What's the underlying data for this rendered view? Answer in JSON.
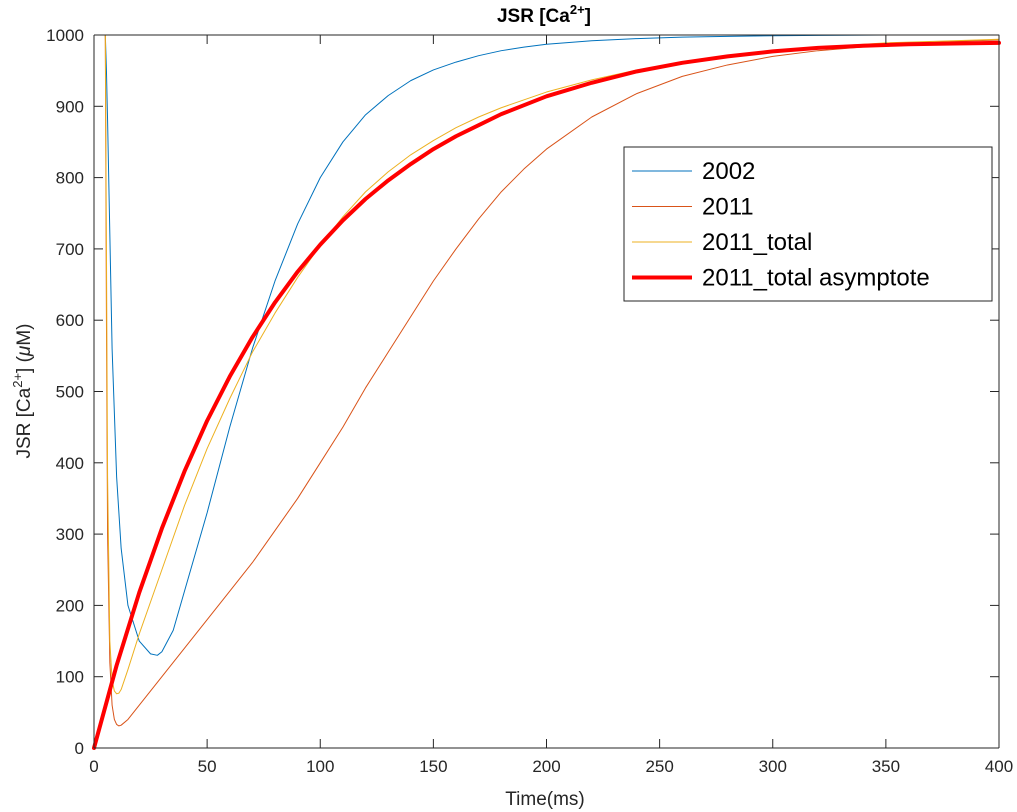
{
  "chart_data": {
    "type": "line",
    "title": "JSR [Ca",
    "title_superscript": "2+",
    "title_suffix": "]",
    "xlabel": "Time(ms)",
    "ylabel_prefix": "JSR [Ca",
    "ylabel_superscript": "2+",
    "ylabel_suffix": "] (",
    "ylabel_mu": "μ",
    "ylabel_unit": "M)",
    "xlim": [
      0,
      400
    ],
    "ylim": [
      0,
      1000
    ],
    "xticks": [
      0,
      50,
      100,
      150,
      200,
      250,
      300,
      350,
      400
    ],
    "yticks": [
      0,
      100,
      200,
      300,
      400,
      500,
      600,
      700,
      800,
      900,
      1000
    ],
    "grid": false,
    "legend_position": "upper-right",
    "series": [
      {
        "name": "2002",
        "color": "#0072BD",
        "line_width": 1,
        "x": [
          5,
          5.5,
          6,
          7,
          8,
          10,
          12,
          15,
          20,
          25,
          28,
          30,
          35,
          40,
          50,
          60,
          70,
          80,
          90,
          100,
          110,
          120,
          130,
          140,
          150,
          160,
          170,
          180,
          190,
          200,
          220,
          240,
          260,
          280,
          300,
          320,
          350,
          380,
          400
        ],
        "y": [
          1000,
          950,
          880,
          720,
          560,
          380,
          280,
          200,
          150,
          132,
          130,
          135,
          165,
          220,
          330,
          450,
          560,
          655,
          735,
          800,
          850,
          888,
          915,
          936,
          951,
          962,
          971,
          978,
          983,
          987,
          992,
          995,
          997,
          998,
          999,
          999.5,
          1000,
          1000,
          1000
        ]
      },
      {
        "name": "2011",
        "color": "#D95319",
        "line_width": 1,
        "x": [
          5,
          5.5,
          6,
          7,
          8,
          9,
          10,
          11,
          12,
          15,
          20,
          30,
          40,
          50,
          60,
          70,
          80,
          90,
          100,
          110,
          120,
          130,
          140,
          150,
          160,
          170,
          180,
          190,
          200,
          220,
          240,
          260,
          280,
          300,
          320,
          350,
          380,
          400
        ],
        "y": [
          1000,
          600,
          300,
          120,
          60,
          40,
          33,
          31,
          32,
          40,
          60,
          100,
          140,
          180,
          220,
          260,
          305,
          350,
          400,
          450,
          505,
          555,
          605,
          655,
          700,
          742,
          780,
          812,
          840,
          885,
          918,
          942,
          958,
          970,
          978,
          986,
          991,
          993
        ]
      },
      {
        "name": "2011_total",
        "color": "#EDB120",
        "line_width": 1,
        "x": [
          5,
          5.5,
          6,
          7,
          8,
          9,
          10,
          11,
          12,
          15,
          20,
          30,
          40,
          50,
          60,
          70,
          80,
          90,
          100,
          110,
          120,
          130,
          140,
          150,
          160,
          170,
          180,
          200,
          220,
          240,
          260,
          280,
          300,
          320,
          350,
          380,
          400
        ],
        "y": [
          1000,
          700,
          380,
          150,
          95,
          80,
          76,
          77,
          82,
          110,
          160,
          250,
          340,
          420,
          490,
          555,
          610,
          660,
          705,
          745,
          780,
          808,
          832,
          852,
          870,
          885,
          898,
          920,
          937,
          951,
          962,
          971,
          978,
          983,
          989,
          992,
          994
        ]
      },
      {
        "name": "2011_total asymptote",
        "color": "#FF0000",
        "line_width": 4,
        "x": [
          0,
          10,
          20,
          30,
          40,
          50,
          60,
          70,
          80,
          90,
          100,
          110,
          120,
          130,
          140,
          150,
          160,
          180,
          200,
          220,
          240,
          260,
          280,
          300,
          320,
          340,
          360,
          380,
          400
        ],
        "y": [
          0,
          116,
          218,
          308,
          388,
          459,
          521,
          576,
          625,
          668,
          706,
          740,
          770,
          796,
          819,
          840,
          858,
          889,
          914,
          933,
          949,
          961,
          970,
          977,
          982,
          985,
          987,
          988,
          989
        ]
      }
    ]
  }
}
